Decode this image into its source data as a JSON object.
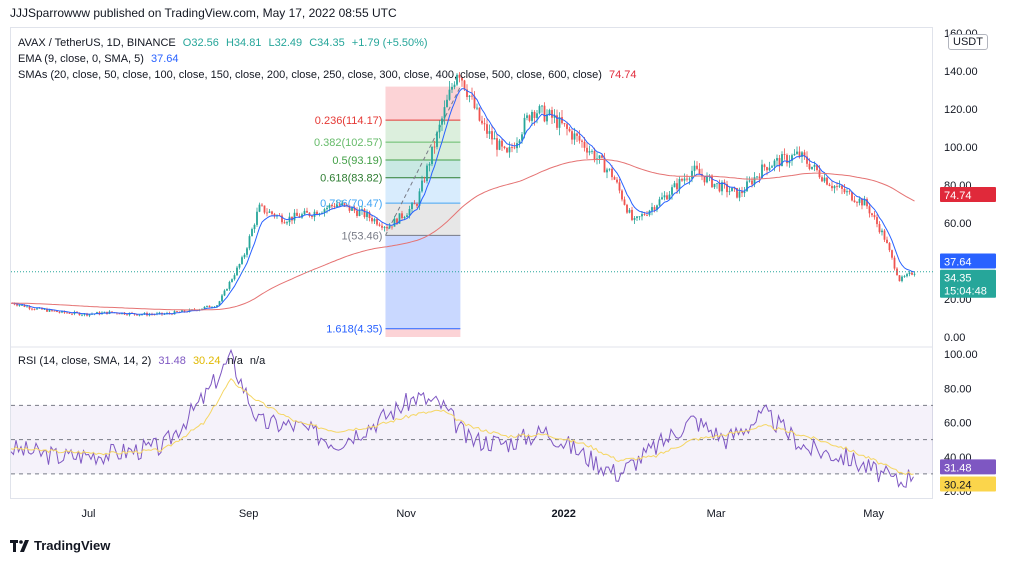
{
  "header": {
    "publisher": "JJJSparrowww published on TradingView.com, May 17, 2022 08:55 UTC"
  },
  "legend": {
    "symbol": "AVAX / TetherUS, 1D, BINANCE",
    "open": "O32.56",
    "high": "H34.81",
    "low": "L32.49",
    "close": "C34.35",
    "change": "+1.79 (+5.50%)",
    "ema_label": "EMA (9, close, 0, SMA, 5)",
    "ema_value": "37.64",
    "sma_label": "SMAs (20, close, 50, close, 100, close, 150, close, 200, close, 250, close, 300, close, 400, close, 500, close, 600, close)",
    "sma_value": "74.74"
  },
  "rsi_legend": {
    "label": "RSI (14, close, SMA, 14, 2)",
    "value": "31.48",
    "ma_value": "30.24",
    "na1": "n/a",
    "na2": "n/a"
  },
  "currency": "USDT",
  "price_badges": {
    "sma": {
      "text": "74.74",
      "color": "#e0293a"
    },
    "ema": {
      "text": "37.64",
      "color": "#2962ff"
    },
    "last": {
      "text": "34.35",
      "timer": "15:04:48",
      "color": "#26a69a"
    }
  },
  "rsi_badges": {
    "rsi": {
      "text": "31.48",
      "color": "#7e57c2"
    },
    "ma": {
      "text": "30.24",
      "color": "#fbd54b"
    }
  },
  "footer": {
    "brand": "TradingView"
  },
  "colors": {
    "up": "#26a69a",
    "down": "#ef5350",
    "ema": "#2962ff",
    "sma": "#e57373",
    "rsi": "#7e57c2",
    "rsi_ma": "#f5d663"
  },
  "chart_data": [
    {
      "type": "candlestick",
      "title": "AVAX / TetherUS, 1D, BINANCE",
      "ylim": [
        0,
        160
      ],
      "y_ticks": [
        "0.00",
        "20.00",
        "40.00",
        "60.00",
        "80.00",
        "100.00",
        "120.00",
        "140.00",
        "160.00"
      ],
      "x_ticks": [
        "Jul",
        "Sep",
        "Nov",
        "2022",
        "Mar",
        "May"
      ],
      "x_dates": [
        "2021-06-01",
        "2021-06-10",
        "2021-06-20",
        "2021-06-30",
        "2021-07-10",
        "2021-07-20",
        "2021-07-30",
        "2021-08-10",
        "2021-08-20",
        "2021-08-30",
        "2021-09-05",
        "2021-09-15",
        "2021-09-25",
        "2021-10-05",
        "2021-10-15",
        "2021-10-25",
        "2021-11-05",
        "2021-11-15",
        "2021-11-21",
        "2021-11-30",
        "2021-12-10",
        "2021-12-20",
        "2021-12-28",
        "2022-01-10",
        "2022-01-20",
        "2022-01-28",
        "2022-02-10",
        "2022-02-20",
        "2022-03-01",
        "2022-03-10",
        "2022-03-20",
        "2022-04-02",
        "2022-04-15",
        "2022-04-28",
        "2022-05-05",
        "2022-05-11",
        "2022-05-17"
      ],
      "close": [
        18,
        15,
        13,
        12,
        13,
        12,
        12,
        14,
        17,
        42,
        68,
        62,
        65,
        70,
        65,
        58,
        70,
        115,
        142,
        112,
        95,
        120,
        115,
        100,
        85,
        60,
        75,
        88,
        80,
        75,
        90,
        96,
        80,
        70,
        53,
        30,
        34.35
      ],
      "series": [
        {
          "name": "EMA (9, close, 0, SMA, 5)",
          "last": 37.64
        },
        {
          "name": "SMAs (20, close, 50, close, 100, close, 150, close, 200, close, 250, close, 300, close, 400, close, 500, close, 600, close)",
          "last": 74.74
        }
      ],
      "last_price": 34.35,
      "fibonacci": {
        "levels": [
          {
            "label": "0.236(114.17)",
            "value": 114.17,
            "color": "#e53935"
          },
          {
            "label": "0.382(102.57)",
            "value": 102.57,
            "color": "#66bb6a"
          },
          {
            "label": "0.5(93.19)",
            "value": 93.19,
            "color": "#43a047"
          },
          {
            "label": "0.618(83.82)",
            "value": 83.82,
            "color": "#2e7d32"
          },
          {
            "label": "0.786(70.47)",
            "value": 70.47,
            "color": "#42a5f5"
          },
          {
            "label": "1(53.46)",
            "value": 53.46,
            "color": "#787b86"
          },
          {
            "label": "1.618(4.35)",
            "value": 4.35,
            "color": "#2962ff"
          }
        ]
      }
    },
    {
      "type": "line",
      "title": "RSI (14, close, SMA, 14, 2)",
      "ylim": [
        20,
        100
      ],
      "y_ticks": [
        "20.00",
        "40.00",
        "60.00",
        "80.00",
        "100.00"
      ],
      "bands": [
        30,
        50,
        70
      ],
      "x_dates": [
        "2021-06-01",
        "2021-06-20",
        "2021-07-10",
        "2021-07-30",
        "2021-08-15",
        "2021-08-25",
        "2021-09-05",
        "2021-09-20",
        "2021-10-05",
        "2021-10-20",
        "2021-11-05",
        "2021-11-15",
        "2021-11-25",
        "2021-12-10",
        "2021-12-25",
        "2022-01-10",
        "2022-01-22",
        "2022-02-05",
        "2022-02-20",
        "2022-03-05",
        "2022-03-20",
        "2022-04-05",
        "2022-04-20",
        "2022-05-01",
        "2022-05-11",
        "2022-05-17"
      ],
      "series": [
        {
          "name": "RSI",
          "values": [
            45,
            40,
            42,
            46,
            75,
            98,
            60,
            58,
            48,
            60,
            75,
            70,
            50,
            48,
            55,
            40,
            30,
            45,
            62,
            50,
            65,
            45,
            40,
            32,
            25,
            31.48
          ]
        },
        {
          "name": "RSI-based MA",
          "values": [
            45,
            43,
            42,
            44,
            60,
            85,
            72,
            60,
            55,
            58,
            65,
            67,
            58,
            52,
            53,
            47,
            38,
            40,
            50,
            53,
            58,
            52,
            45,
            38,
            31,
            30.24
          ]
        }
      ]
    }
  ]
}
